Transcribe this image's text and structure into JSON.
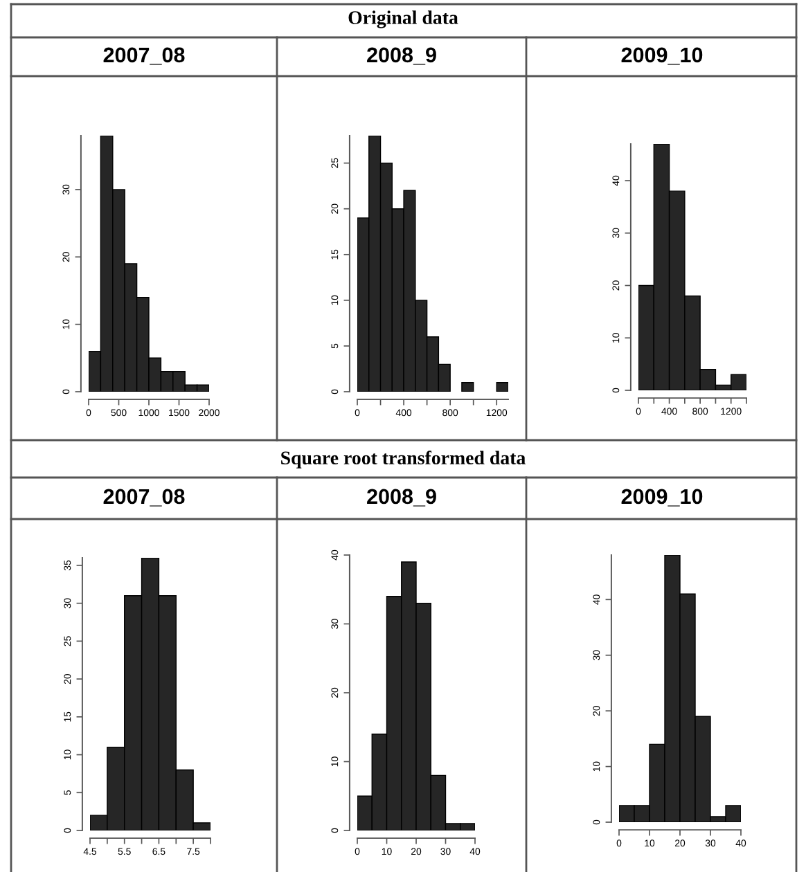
{
  "chart_data": [
    {
      "type": "histogram",
      "title": "2007_08",
      "annotations": [
        "Original data"
      ],
      "color": "#262626",
      "bins": [
        0,
        200,
        400,
        600,
        800,
        1000,
        1200,
        1400,
        1600,
        1800,
        2000
      ],
      "values": [
        6,
        38,
        30,
        19,
        14,
        5,
        3,
        3,
        1,
        1
      ],
      "xlim": [
        0,
        2000
      ],
      "ylim": [
        0,
        38
      ],
      "xticks": [
        0,
        500,
        1000,
        1500,
        2000
      ],
      "yticks": [
        0,
        10,
        20,
        30
      ],
      "grid": false,
      "legend": false
    },
    {
      "type": "histogram",
      "title": "2008_9",
      "color": "#262626",
      "bins": [
        0,
        100,
        200,
        300,
        400,
        500,
        600,
        700,
        800,
        900,
        1000,
        1100,
        1200,
        1300
      ],
      "values": [
        19,
        28,
        25,
        20,
        22,
        10,
        6,
        3,
        0,
        1,
        0,
        0,
        1
      ],
      "xlim": [
        0,
        1300
      ],
      "ylim": [
        0,
        28
      ],
      "xticks": [
        0,
        {
          "value": 200,
          "label": null
        },
        400,
        {
          "value": 600,
          "label": null
        },
        800,
        {
          "value": 1000,
          "label": null
        },
        1200
      ],
      "yticks": [
        0,
        5,
        10,
        15,
        20,
        25
      ],
      "grid": false,
      "legend": false
    },
    {
      "type": "histogram",
      "title": "2009_10",
      "color": "#262626",
      "bins": [
        0,
        200,
        400,
        600,
        800,
        1000,
        1200,
        1400
      ],
      "values": [
        20,
        47,
        38,
        18,
        4,
        1,
        3
      ],
      "xlim": [
        0,
        1400
      ],
      "ylim": [
        0,
        47
      ],
      "xticks": [
        0,
        {
          "value": 200,
          "label": null
        },
        400,
        {
          "value": 600,
          "label": null
        },
        800,
        {
          "value": 1000,
          "label": null
        },
        1200,
        {
          "value": 1400,
          "label": null
        }
      ],
      "yticks": [
        0,
        10,
        20,
        30,
        40
      ],
      "grid": false,
      "legend": false
    },
    {
      "type": "histogram",
      "title": "2007_08",
      "annotations": [
        "Square root transformed data"
      ],
      "color": "#262626",
      "bins": [
        4.5,
        5.0,
        5.5,
        6.0,
        6.5,
        7.0,
        7.5,
        8.0
      ],
      "values": [
        2,
        11,
        31,
        36,
        31,
        8,
        1
      ],
      "xlim": [
        4.5,
        8.0
      ],
      "ylim": [
        0,
        36
      ],
      "xticks": [
        4.5,
        {
          "value": 5.0,
          "label": null
        },
        5.5,
        {
          "value": 6.0,
          "label": null
        },
        6.5,
        {
          "value": 7.0,
          "label": null
        },
        7.5,
        {
          "value": 8.0,
          "label": null
        }
      ],
      "yticks": [
        0,
        5,
        10,
        15,
        20,
        25,
        30,
        35
      ],
      "grid": false,
      "legend": false
    },
    {
      "type": "histogram",
      "title": "2008_9",
      "color": "#262626",
      "bins": [
        0,
        5,
        10,
        15,
        20,
        25,
        30,
        35,
        40
      ],
      "values": [
        5,
        14,
        34,
        39,
        33,
        8,
        1,
        1
      ],
      "xlim": [
        0,
        40
      ],
      "ylim": [
        0,
        40
      ],
      "xticks": [
        0,
        10,
        20,
        30,
        40
      ],
      "yticks": [
        0,
        10,
        20,
        30,
        40
      ],
      "grid": false,
      "legend": false
    },
    {
      "type": "histogram",
      "title": "2009_10",
      "color": "#262626",
      "bins": [
        0,
        5,
        10,
        15,
        20,
        25,
        30,
        35,
        40
      ],
      "values": [
        3,
        3,
        14,
        48,
        41,
        19,
        1,
        3
      ],
      "xlim": [
        0,
        40
      ],
      "ylim": [
        0,
        48
      ],
      "xticks": [
        0,
        10,
        20,
        30,
        40
      ],
      "yticks": [
        0,
        10,
        20,
        30,
        40
      ],
      "grid": false,
      "legend": false
    }
  ]
}
